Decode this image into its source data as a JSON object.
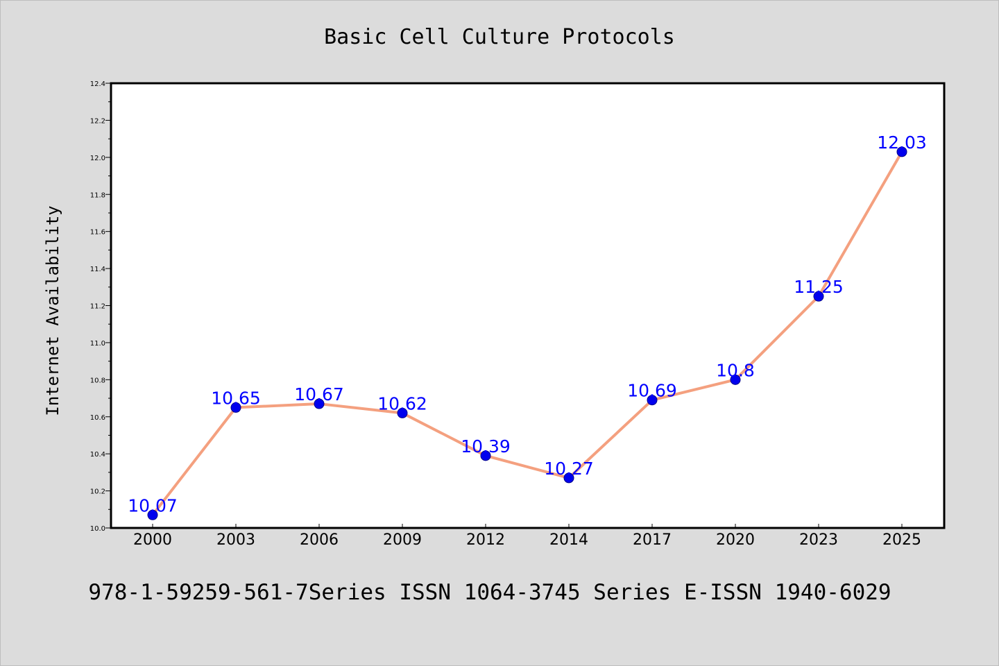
{
  "title": "Basic Cell Culture Protocols",
  "footer": "978-1-59259-561-7Series ISSN 1064-3745 Series E-ISSN 1940-6029",
  "colors": {
    "background": "#dcdcdc",
    "plot_background": "#ffffff",
    "line": "#f4a07f",
    "marker": "#0000ee",
    "data_label": "#0000ff",
    "axis": "#000000"
  },
  "chart_data": {
    "type": "line",
    "title": "Basic Cell Culture Protocols",
    "xlabel": "",
    "ylabel": "Internet Availability",
    "categories": [
      "2000",
      "2003",
      "2006",
      "2009",
      "2012",
      "2014",
      "2017",
      "2020",
      "2023",
      "2025"
    ],
    "series": [
      {
        "values": [
          10.07,
          10.65,
          10.67,
          10.62,
          10.39,
          10.27,
          10.69,
          10.8,
          11.25,
          12.03
        ],
        "labels": [
          "10.07",
          "10.65",
          "10.67",
          "10.62",
          "10.39",
          "10.27",
          "10.69",
          "10.8",
          "11.25",
          "12.03"
        ]
      }
    ],
    "ylim": [
      10.0,
      12.4
    ],
    "yticks": [
      "10.0",
      "10.2",
      "10.4",
      "10.6",
      "10.8",
      "11.0",
      "11.2",
      "11.4",
      "11.6",
      "11.8",
      "12.0",
      "12.2",
      "12.4"
    ],
    "grid": false,
    "legend": "none",
    "marker": "circle"
  }
}
